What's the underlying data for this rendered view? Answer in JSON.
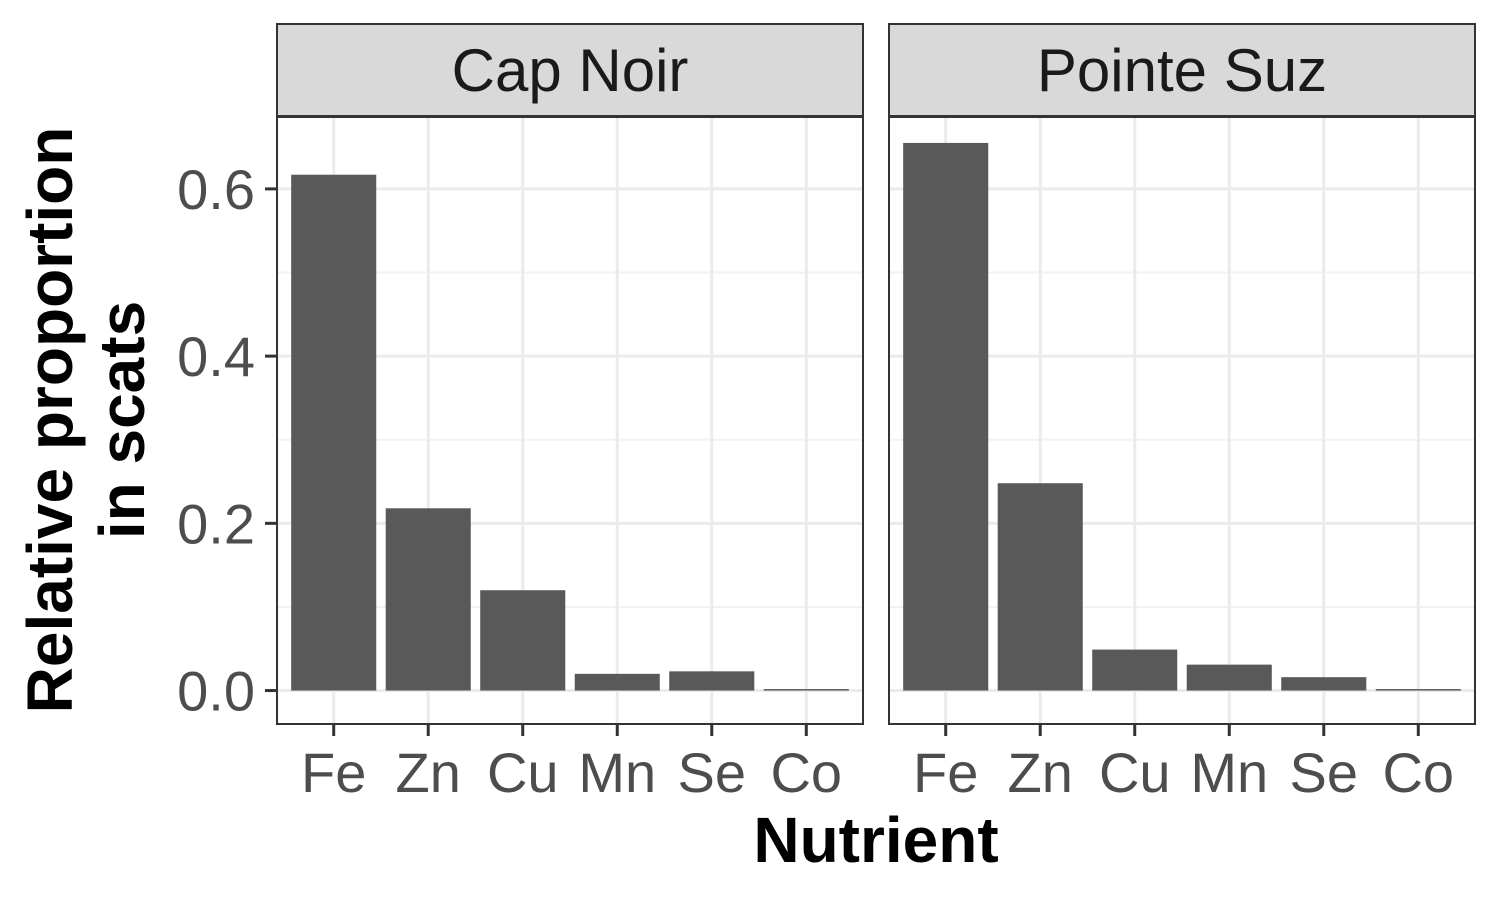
{
  "chart_data": {
    "type": "bar",
    "xlabel": "Nutrient",
    "ylabel": [
      "Relative proportion",
      "in scats"
    ],
    "categories": [
      "Fe",
      "Zn",
      "Cu",
      "Mn",
      "Se",
      "Co"
    ],
    "ylim": [
      -0.04,
      0.686
    ],
    "yticks": [
      0.0,
      0.2,
      0.4,
      0.6
    ],
    "ytick_labels": [
      "0.0",
      "0.2",
      "0.4",
      "0.6"
    ],
    "grid": true,
    "facets": [
      {
        "name": "Cap Noir",
        "values": [
          0.617,
          0.218,
          0.12,
          0.02,
          0.023,
          0.001
        ]
      },
      {
        "name": "Pointe Suz",
        "values": [
          0.655,
          0.248,
          0.049,
          0.031,
          0.016,
          0.001
        ]
      }
    ],
    "colors": {
      "bar": "#595959",
      "strip_fill": "#d9d9d9",
      "panel_border": "#333333",
      "grid_major": "#ebebeb",
      "grid_minor": "#f2f2f2",
      "tick": "#333333"
    }
  }
}
